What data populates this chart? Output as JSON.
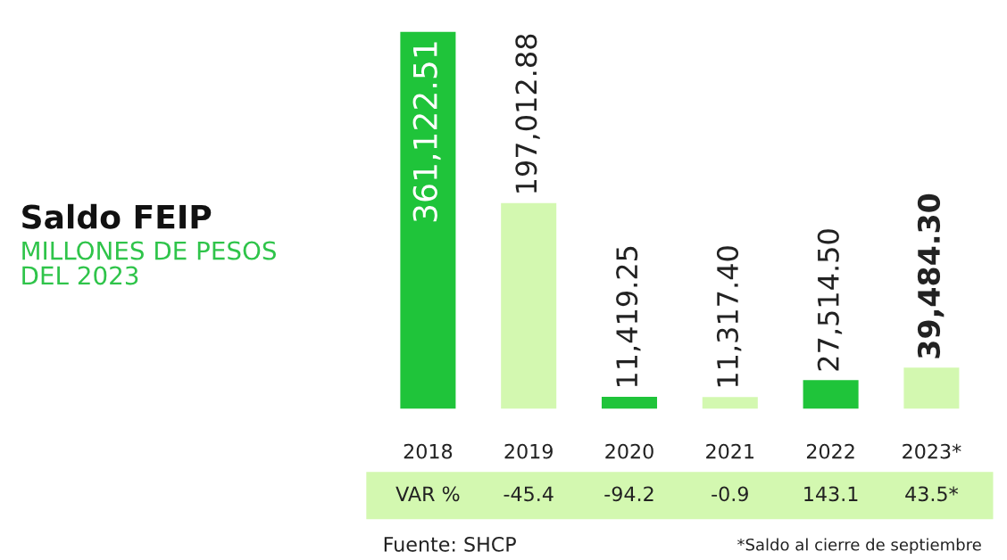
{
  "chart_data": {
    "type": "bar",
    "title": "Saldo FEIP",
    "subtitle": "MILLONES DE PESOS\nDEL 2023",
    "categories": [
      "2018",
      "2019",
      "2020",
      "2021",
      "2022",
      "2023*"
    ],
    "values": [
      361122.51,
      197012.88,
      11419.25,
      11317.4,
      27514.5,
      39484.3
    ],
    "colors": [
      "#1fc43a",
      "#d3f8b0",
      "#1fc43a",
      "#d3f8b0",
      "#1fc43a",
      "#d3f8b0"
    ],
    "value_labels": [
      "361,122.51",
      "197,012.88",
      "11,419.25",
      "11,317.40",
      "27,514.50",
      "39,484.30"
    ],
    "annotations": [
      "VAR %",
      "-45.4",
      "-94.2",
      "-0.9",
      "143.1",
      "43.5*",
      "Fuente: SHCP",
      "*Saldo al cierre de septiembre"
    ],
    "grid": false,
    "legend": false
  }
}
